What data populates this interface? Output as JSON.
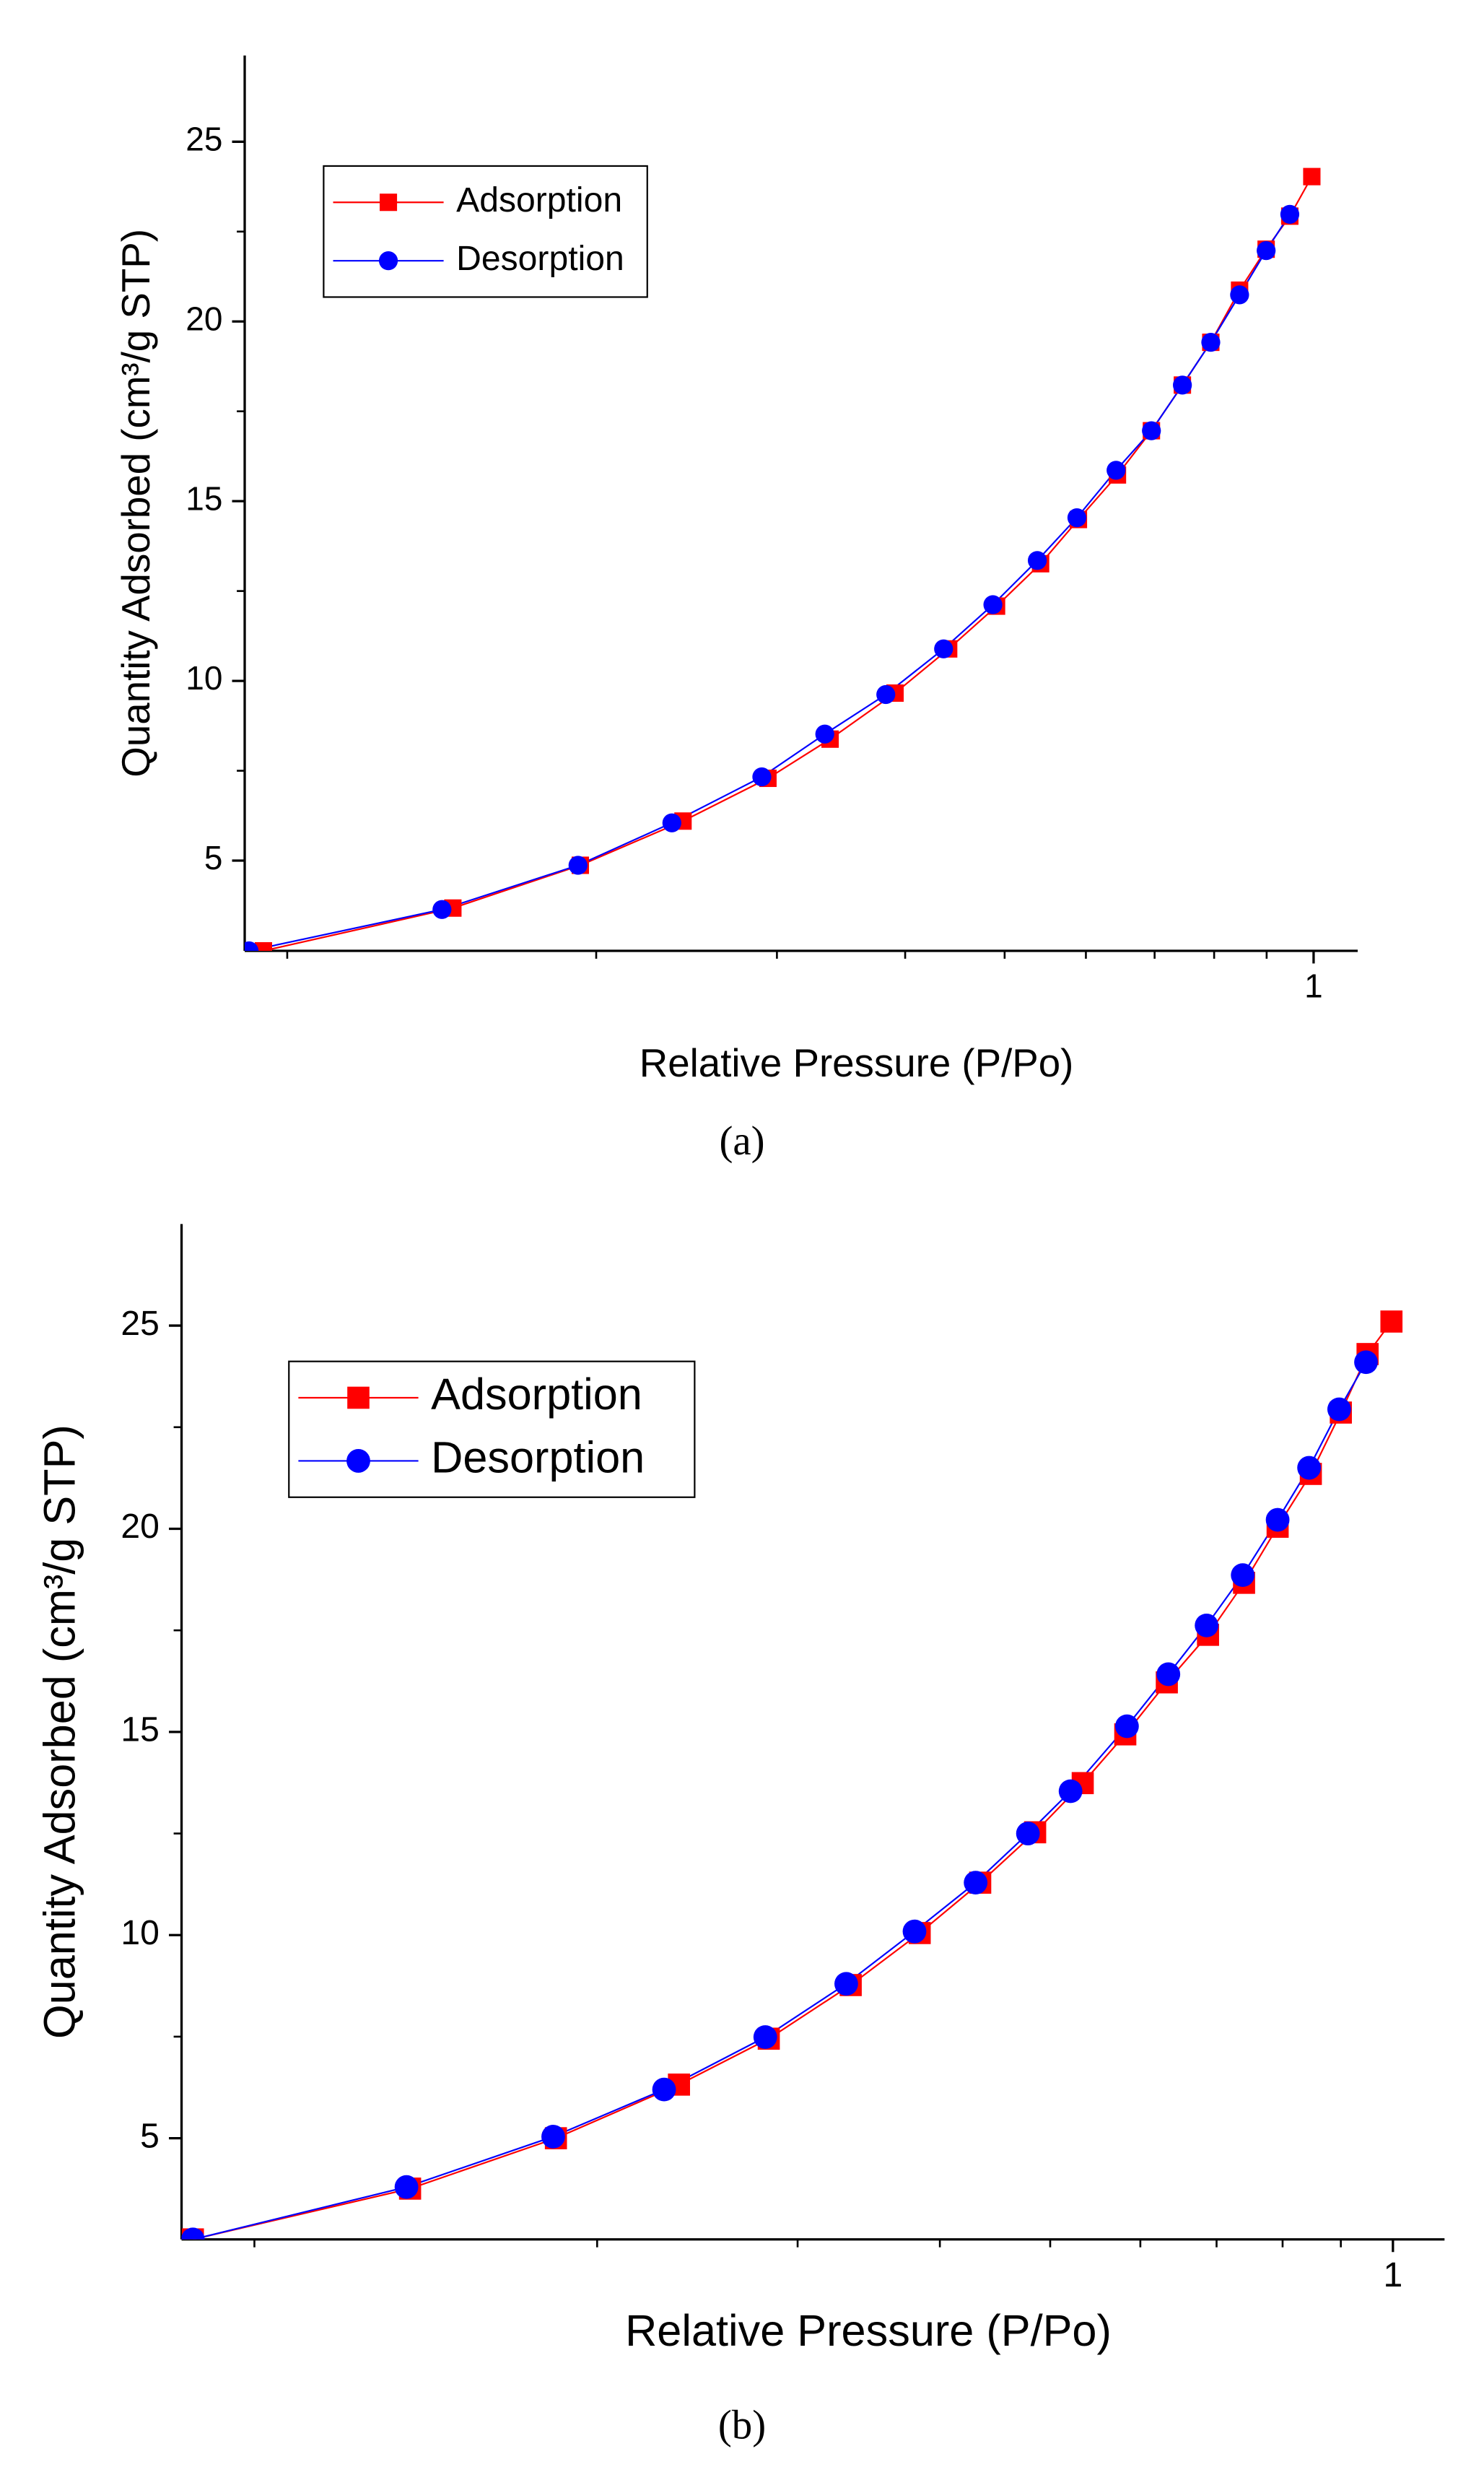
{
  "chart_data": [
    {
      "type": "line",
      "caption": "(a)",
      "xlabel": "Relative Pressure (P/Po)",
      "ylabel": "Quantity Adsorbed (cm³/g STP)",
      "xscale": "log",
      "xlim": [
        0.0909,
        1.104
      ],
      "xticks": [
        1
      ],
      "xminorticks": [
        0.1,
        0.2,
        0.3,
        0.4,
        0.5,
        0.6,
        0.7,
        0.8,
        0.9
      ],
      "ylim": [
        2.49,
        27.4
      ],
      "yticks": [
        5,
        10,
        15,
        20,
        25
      ],
      "yminorticks": [
        7.5,
        12.5,
        17.5,
        22.5
      ],
      "legend": "upper left",
      "series": [
        {
          "name": "Adsorption",
          "color": "#ff0000",
          "marker": "square",
          "x": [
            0.0948,
            0.145,
            0.193,
            0.243,
            0.294,
            0.338,
            0.391,
            0.441,
            0.491,
            0.542,
            0.59,
            0.644,
            0.695,
            0.745,
            0.794,
            0.847,
            0.899,
            0.948,
            0.996
          ],
          "values": [
            2.49,
            3.68,
            4.87,
            6.1,
            7.29,
            8.38,
            9.66,
            10.89,
            12.08,
            13.26,
            14.49,
            15.73,
            16.96,
            18.23,
            19.42,
            20.87,
            22.01,
            22.93,
            24.03
          ]
        },
        {
          "name": "Desorption",
          "color": "#0000ff",
          "marker": "circle",
          "x": [
            0.0918,
            0.1415,
            0.192,
            0.237,
            0.29,
            0.334,
            0.383,
            0.436,
            0.487,
            0.538,
            0.588,
            0.642,
            0.695,
            0.745,
            0.794,
            0.847,
            0.899,
            0.948
          ],
          "values": [
            2.49,
            3.64,
            4.87,
            6.05,
            7.33,
            8.52,
            9.62,
            10.89,
            12.12,
            13.35,
            14.54,
            15.86,
            16.96,
            18.23,
            19.42,
            20.74,
            21.97,
            22.98
          ]
        }
      ]
    },
    {
      "type": "line",
      "caption": "(b)",
      "xlabel": "Relative Pressure (P/Po)",
      "ylabel": "Quantity Adsorbed (cm³/g STP)",
      "xscale": "log",
      "xlim": [
        0.0863,
        1.11
      ],
      "xticks": [
        1
      ],
      "xminorticks": [
        0.1,
        0.2,
        0.3,
        0.4,
        0.5,
        0.6,
        0.7,
        0.8,
        0.9
      ],
      "ylim": [
        2.51,
        27.5
      ],
      "yticks": [
        5,
        10,
        15,
        20,
        25
      ],
      "yminorticks": [
        7.5,
        12.5,
        17.5,
        22.5
      ],
      "legend": "upper left",
      "series": [
        {
          "name": "Adsorption",
          "color": "#ff0000",
          "marker": "square",
          "x": [
            0.0883,
            0.137,
            0.184,
            0.236,
            0.283,
            0.334,
            0.384,
            0.434,
            0.485,
            0.534,
            0.582,
            0.633,
            0.688,
            0.74,
            0.792,
            0.847,
            0.9,
            0.95,
            0.997
          ],
          "values": [
            2.51,
            3.76,
            5.0,
            6.32,
            7.45,
            8.77,
            10.05,
            11.29,
            12.53,
            13.74,
            14.94,
            16.22,
            17.39,
            18.67,
            20.05,
            21.35,
            22.86,
            24.3,
            25.1
          ]
        },
        {
          "name": "Desorption",
          "color": "#0000ff",
          "marker": "circle",
          "x": [
            0.0883,
            0.136,
            0.183,
            0.229,
            0.281,
            0.331,
            0.38,
            0.43,
            0.478,
            0.521,
            0.584,
            0.635,
            0.686,
            0.738,
            0.792,
            0.844,
            0.897,
            0.947
          ],
          "values": [
            2.51,
            3.8,
            5.04,
            6.2,
            7.49,
            8.8,
            10.09,
            11.29,
            12.5,
            13.54,
            15.14,
            16.42,
            17.62,
            18.86,
            20.22,
            21.5,
            22.94,
            24.1
          ]
        }
      ]
    }
  ]
}
